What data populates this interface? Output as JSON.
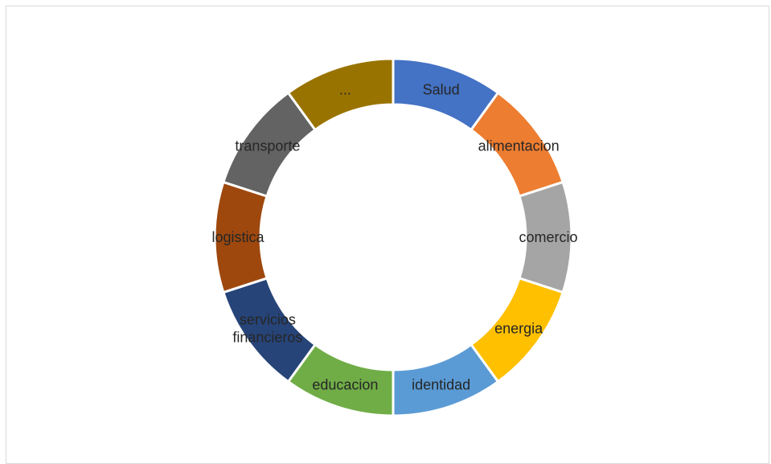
{
  "chart_data": {
    "type": "pie",
    "variant": "doughnut",
    "title": "",
    "categories": [
      "Salud",
      "alimentacion",
      "comercio",
      "energia",
      "identidad",
      "educacion",
      "servicios financieros",
      "logistica",
      "transporte",
      "..."
    ],
    "labels": [
      [
        "Salud"
      ],
      [
        "alimentacion"
      ],
      [
        "comercio"
      ],
      [
        "energia"
      ],
      [
        "identidad"
      ],
      [
        "educacion"
      ],
      [
        "servicios",
        "financieros"
      ],
      [
        "logistica"
      ],
      [
        "transporte"
      ],
      [
        "..."
      ]
    ],
    "values": [
      1,
      1,
      1,
      1,
      1,
      1,
      1,
      1,
      1,
      1
    ],
    "colors": [
      "#4472C4",
      "#ED7D31",
      "#A5A5A5",
      "#FFC000",
      "#5B9BD5",
      "#70AD47",
      "#264478",
      "#9E480E",
      "#636363",
      "#997300"
    ],
    "legend": "none"
  }
}
